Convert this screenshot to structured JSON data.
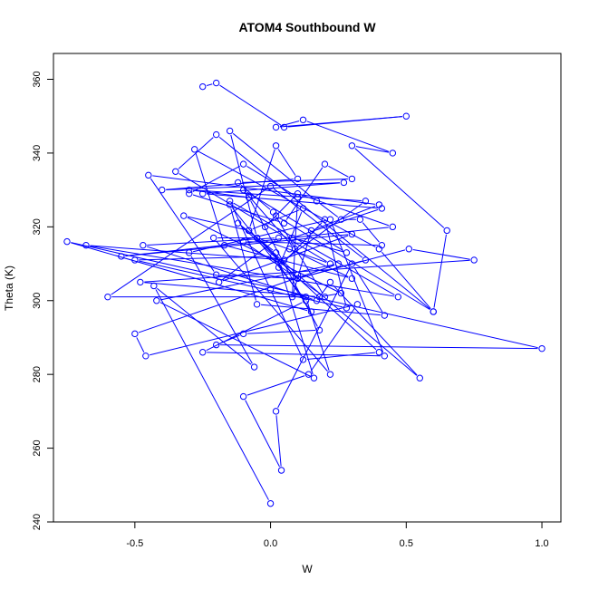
{
  "chart_data": {
    "type": "line",
    "title": "ATOM4 Southbound W",
    "xlabel": "W",
    "ylabel": "Theta (K)",
    "xlim": [
      -0.8,
      1.07
    ],
    "ylim": [
      240,
      367
    ],
    "x_ticks": [
      "-0.5",
      "0.0",
      "0.5",
      "1.0"
    ],
    "y_ticks": [
      "240",
      "260",
      "280",
      "300",
      "320",
      "340",
      "360"
    ],
    "grid": false,
    "legend": "none",
    "series": [
      {
        "color": "#0000ff",
        "marker": "open-circle",
        "x": [
          -0.25,
          -0.2,
          0.05,
          0.5,
          0.02,
          0.12,
          0.45,
          0.3,
          0.65,
          0.6,
          -0.2,
          -0.35,
          0.22,
          -0.05,
          -0.15,
          0.17,
          0.26,
          0.33,
          0.41,
          -0.1,
          0.2,
          0.01,
          -0.12,
          0.3,
          0.2,
          0.05,
          -0.3,
          -0.1,
          0.1,
          0.08,
          0.15,
          0.4,
          -0.45,
          -0.2,
          0.1,
          0.35,
          0.0,
          -0.6,
          0.13,
          0.22,
          -0.21,
          -0.05,
          0.1,
          0.51,
          0.75,
          -0.48,
          0.18,
          0.26,
          -0.32,
          -0.08,
          0.02,
          0.1,
          -0.4,
          0.27,
          -0.25,
          0.41,
          0.08,
          0.28,
          -0.1,
          0.09,
          0.07,
          0.3,
          -0.17,
          -0.28,
          0.4,
          0.6,
          0.02,
          -0.02,
          0.1,
          0.45,
          -0.55,
          0.3,
          -0.19,
          0.03,
          -0.47,
          0.17,
          0.22,
          0.55,
          0.1,
          -0.08,
          0.12,
          0.03,
          0.2,
          0.28,
          -0.5,
          0.01,
          0.15,
          -0.75,
          1.0,
          -0.2,
          -0.1,
          0.18,
          -0.08,
          -0.3,
          0.35,
          0.05,
          -0.68,
          0.47,
          -0.15,
          0.0,
          0.12,
          0.4,
          -0.12,
          0.02,
          0.16,
          -0.42,
          0.25,
          -0.5,
          -0.46,
          0.32,
          0.14,
          -0.1,
          0.04,
          0.02,
          0.3,
          0.42,
          -0.05,
          -0.15,
          0.13,
          -0.25,
          0.42,
          0.22,
          -0.3,
          -0.06,
          -0.43,
          0.0
        ],
        "y": [
          358,
          359,
          347,
          350,
          347,
          349,
          340,
          342,
          319,
          297,
          345,
          335,
          310,
          317,
          346,
          327,
          322,
          322,
          315,
          316,
          301,
          324,
          332,
          333,
          337,
          321,
          329,
          337,
          328,
          301,
          319,
          326,
          334,
          307,
          306,
          311,
          331,
          301,
          301,
          280,
          317,
          317,
          306,
          314,
          311,
          305,
          301,
          302,
          323,
          319,
          342,
          333,
          330,
          332,
          329,
          325,
          317,
          313,
          330,
          314,
          314,
          306,
          315,
          341,
          314,
          297,
          323,
          320,
          329,
          320,
          312,
          318,
          305,
          317,
          315,
          300,
          305,
          279,
          307,
          319,
          325,
          309,
          322,
          298,
          311,
          312,
          297,
          316,
          287,
          288,
          291,
          292,
          328,
          330,
          327,
          311,
          315,
          301,
          327,
          303,
          284,
          286,
          321,
          313,
          279,
          300,
          310,
          291,
          285,
          299,
          280,
          274,
          254,
          270,
          310,
          296,
          299,
          326,
          300,
          286,
          285,
          322,
          313,
          282,
          304,
          245
        ]
      }
    ]
  }
}
